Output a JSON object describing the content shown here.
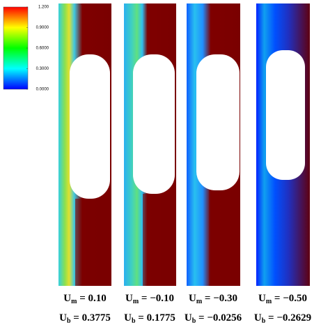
{
  "colorbar": {
    "min": 0,
    "max": 1.2,
    "ticks": [
      {
        "value": 1.2,
        "label": "1.200"
      },
      {
        "value": 0.9,
        "label": "0.9000"
      },
      {
        "value": 0.6,
        "label": "0.6000"
      },
      {
        "value": 0.3,
        "label": "0.3000"
      },
      {
        "value": 0,
        "label": "0.0000"
      }
    ]
  },
  "panels": [
    {
      "um": {
        "symbol": "U",
        "sub": "m",
        "eq": " = ",
        "value": "0.10"
      },
      "ub": {
        "symbol": "U",
        "sub": "b",
        "eq": " = ",
        "value": "0.3775"
      }
    },
    {
      "um": {
        "symbol": "U",
        "sub": "m",
        "eq": " = ",
        "value": "−0.10"
      },
      "ub": {
        "symbol": "U",
        "sub": "b",
        "eq": " = ",
        "value": "0.1775"
      }
    },
    {
      "um": {
        "symbol": "U",
        "sub": "m",
        "eq": " = ",
        "value": "−0.30"
      },
      "ub": {
        "symbol": "U",
        "sub": "b",
        "eq": " = ",
        "value": "−0.0256"
      }
    },
    {
      "um": {
        "symbol": "U",
        "sub": "m",
        "eq": " = ",
        "value": "−0.50"
      },
      "ub": {
        "symbol": "U",
        "sub": "b",
        "eq": " = ",
        "value": "−0.2629"
      }
    }
  ]
}
